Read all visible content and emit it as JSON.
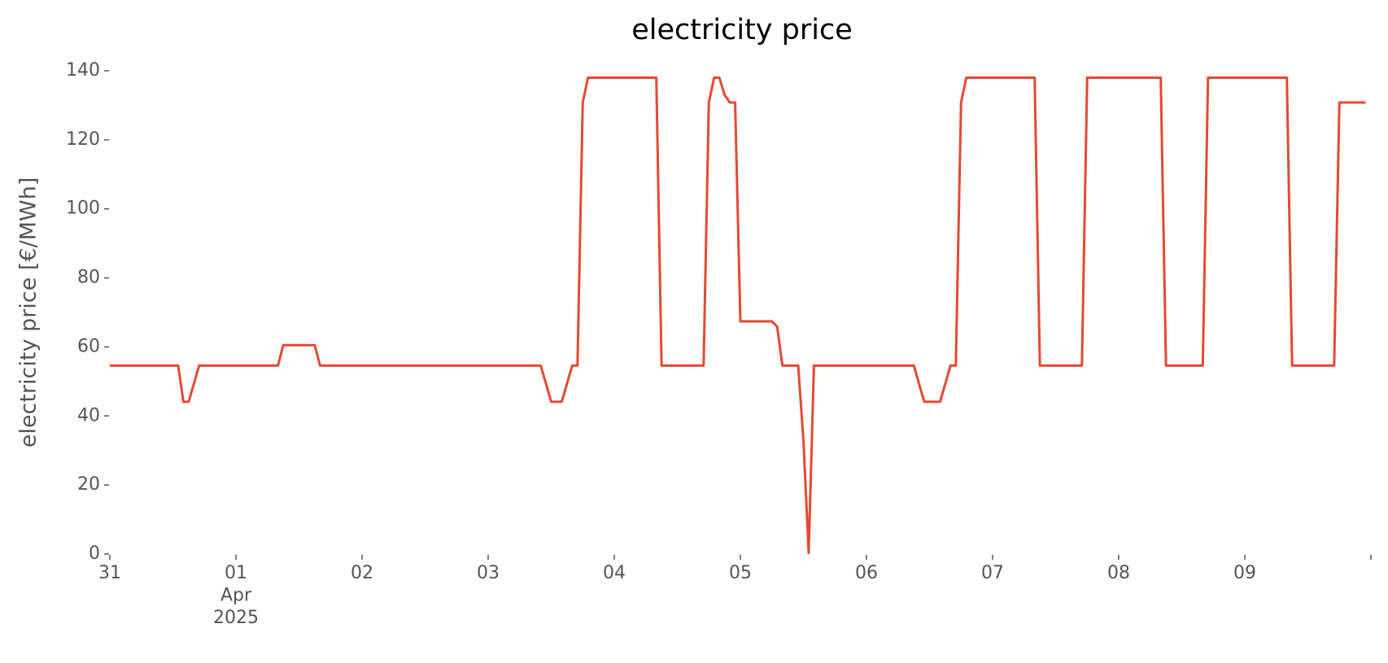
{
  "chart_data": {
    "type": "line",
    "title": "electricity price",
    "ylabel": "electricity price [€/MWh]",
    "x": [
      "2025-03-31T00:00",
      "2025-03-31T13:00",
      "2025-03-31T14:00",
      "2025-03-31T15:00",
      "2025-03-31T17:00",
      "2025-04-01T08:00",
      "2025-04-01T09:00",
      "2025-04-01T15:00",
      "2025-04-01T16:00",
      "2025-04-03T10:00",
      "2025-04-03T12:00",
      "2025-04-03T14:00",
      "2025-04-03T16:00",
      "2025-04-03T17:00",
      "2025-04-03T18:00",
      "2025-04-03T19:00",
      "2025-04-04T08:00",
      "2025-04-04T09:00",
      "2025-04-04T17:00",
      "2025-04-04T18:00",
      "2025-04-04T19:00",
      "2025-04-04T20:00",
      "2025-04-04T21:00",
      "2025-04-04T22:00",
      "2025-04-04T23:00",
      "2025-04-05T00:00",
      "2025-04-05T06:00",
      "2025-04-05T07:00",
      "2025-04-05T08:00",
      "2025-04-05T11:00",
      "2025-04-05T12:00",
      "2025-04-05T13:00",
      "2025-04-05T14:00",
      "2025-04-06T09:00",
      "2025-04-06T11:00",
      "2025-04-06T14:00",
      "2025-04-06T16:00",
      "2025-04-06T17:00",
      "2025-04-06T18:00",
      "2025-04-06T19:00",
      "2025-04-07T08:00",
      "2025-04-07T09:00",
      "2025-04-07T17:00",
      "2025-04-07T18:00",
      "2025-04-08T08:00",
      "2025-04-08T09:00",
      "2025-04-08T16:00",
      "2025-04-08T17:00",
      "2025-04-09T08:00",
      "2025-04-09T09:00",
      "2025-04-09T17:00",
      "2025-04-09T18:00",
      "2025-04-09T23:00"
    ],
    "series": [
      {
        "name": "electricity price",
        "color": "#e24a33",
        "values": [
          54.6,
          54.6,
          44.1,
          44.1,
          54.6,
          54.6,
          60.5,
          60.5,
          54.6,
          54.6,
          44.1,
          44.1,
          54.6,
          54.6,
          130.8,
          138,
          138,
          54.6,
          54.6,
          130.8,
          138,
          138,
          133,
          130.8,
          130.8,
          67.4,
          67.4,
          65.9,
          54.6,
          54.6,
          33,
          0.3,
          54.6,
          54.6,
          44.1,
          44.1,
          54.6,
          54.6,
          130.8,
          138,
          138,
          54.6,
          54.6,
          138,
          138,
          54.6,
          54.6,
          138,
          138,
          54.6,
          54.6,
          130.8,
          130.8
        ]
      }
    ],
    "xlim": [
      "2025-03-31T00:00",
      "2025-04-10T00:00"
    ],
    "xticks": [
      {
        "value": "2025-03-31T00:00",
        "label": "31"
      },
      {
        "value": "2025-04-01T00:00",
        "label": "01\nApr\n2025"
      },
      {
        "value": "2025-04-02T00:00",
        "label": "02"
      },
      {
        "value": "2025-04-03T00:00",
        "label": "03"
      },
      {
        "value": "2025-04-04T00:00",
        "label": "04"
      },
      {
        "value": "2025-04-05T00:00",
        "label": "05"
      },
      {
        "value": "2025-04-06T00:00",
        "label": "06"
      },
      {
        "value": "2025-04-07T00:00",
        "label": "07"
      },
      {
        "value": "2025-04-08T00:00",
        "label": "08"
      },
      {
        "value": "2025-04-09T00:00",
        "label": "09"
      }
    ],
    "ylim": [
      0,
      140
    ],
    "yticks": [
      0,
      20,
      40,
      60,
      80,
      100,
      120,
      140
    ],
    "grid": false
  }
}
